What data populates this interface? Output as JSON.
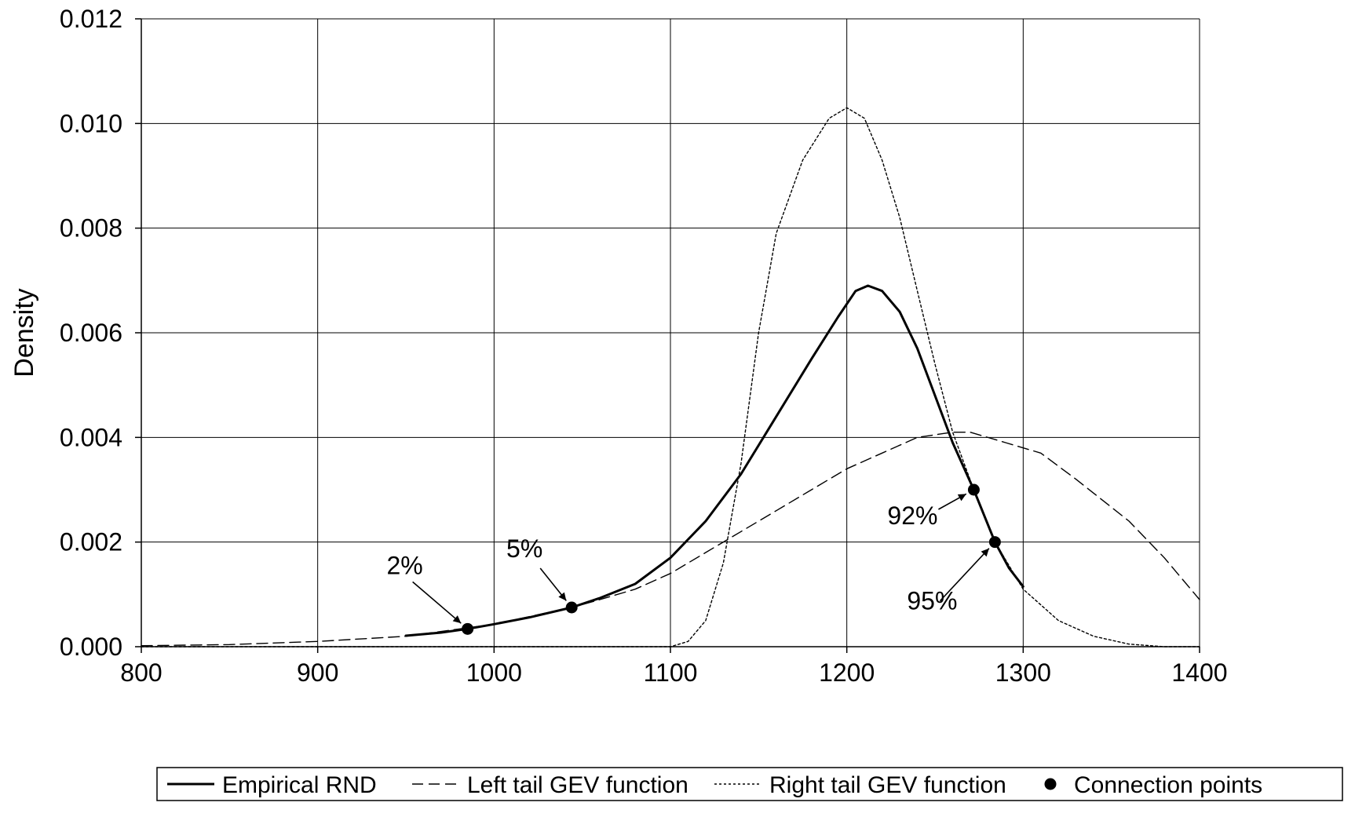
{
  "chart_data": {
    "type": "line",
    "title": "",
    "xlabel": "",
    "ylabel": "Density",
    "xlim": [
      800,
      1400
    ],
    "ylim": [
      0,
      0.012
    ],
    "x_ticks": [
      "800",
      "900",
      "1000",
      "1100",
      "1200",
      "1300",
      "1400"
    ],
    "y_ticks": [
      "0.000",
      "0.002",
      "0.004",
      "0.006",
      "0.008",
      "0.010",
      "0.012"
    ],
    "grid": true,
    "legend_position": "bottom",
    "series": [
      {
        "name": "Empirical RND",
        "style": "solid",
        "color": "#000000",
        "points": [
          [
            950,
            0.00021
          ],
          [
            970,
            0.00027
          ],
          [
            985,
            0.00034
          ],
          [
            1000,
            0.00043
          ],
          [
            1020,
            0.00056
          ],
          [
            1044,
            0.00075
          ],
          [
            1060,
            0.00093
          ],
          [
            1080,
            0.0012
          ],
          [
            1100,
            0.0017
          ],
          [
            1120,
            0.0024
          ],
          [
            1140,
            0.0033
          ],
          [
            1160,
            0.0044
          ],
          [
            1180,
            0.0055
          ],
          [
            1195,
            0.0063
          ],
          [
            1205,
            0.0068
          ],
          [
            1212,
            0.0069
          ],
          [
            1220,
            0.0068
          ],
          [
            1230,
            0.0064
          ],
          [
            1240,
            0.0057
          ],
          [
            1250,
            0.0048
          ],
          [
            1260,
            0.0039
          ],
          [
            1272,
            0.003
          ],
          [
            1284,
            0.002
          ],
          [
            1292,
            0.0015
          ],
          [
            1300,
            0.00115
          ]
        ]
      },
      {
        "name": "Left tail GEV function",
        "style": "dashed",
        "color": "#000000",
        "points": [
          [
            800,
            2e-05
          ],
          [
            850,
            4e-05
          ],
          [
            900,
            0.0001
          ],
          [
            950,
            0.0002
          ],
          [
            1000,
            0.00043
          ],
          [
            1044,
            0.00075
          ],
          [
            1060,
            0.0009
          ],
          [
            1080,
            0.0011
          ],
          [
            1100,
            0.0014
          ],
          [
            1120,
            0.0018
          ],
          [
            1140,
            0.0022
          ],
          [
            1160,
            0.0026
          ],
          [
            1180,
            0.003
          ],
          [
            1200,
            0.0034
          ],
          [
            1220,
            0.0037
          ],
          [
            1240,
            0.004
          ],
          [
            1260,
            0.0041
          ],
          [
            1270,
            0.0041
          ],
          [
            1290,
            0.0039
          ],
          [
            1310,
            0.0037
          ],
          [
            1330,
            0.0032
          ],
          [
            1360,
            0.0024
          ],
          [
            1380,
            0.0017
          ],
          [
            1400,
            0.0009
          ]
        ]
      },
      {
        "name": "Right tail GEV function",
        "style": "dotted",
        "color": "#000000",
        "points": [
          [
            800,
            0.0
          ],
          [
            1100,
            0.0
          ],
          [
            1110,
            0.0001
          ],
          [
            1120,
            0.0005
          ],
          [
            1130,
            0.0016
          ],
          [
            1140,
            0.0035
          ],
          [
            1150,
            0.006
          ],
          [
            1160,
            0.0079
          ],
          [
            1175,
            0.0093
          ],
          [
            1190,
            0.0101
          ],
          [
            1200,
            0.0103
          ],
          [
            1210,
            0.0101
          ],
          [
            1220,
            0.0093
          ],
          [
            1230,
            0.0082
          ],
          [
            1240,
            0.0068
          ],
          [
            1250,
            0.0054
          ],
          [
            1260,
            0.0041
          ],
          [
            1272,
            0.003
          ],
          [
            1284,
            0.002
          ],
          [
            1300,
            0.0011
          ],
          [
            1320,
            0.0005
          ],
          [
            1340,
            0.0002
          ],
          [
            1360,
            5e-05
          ],
          [
            1380,
            0.0
          ],
          [
            1400,
            0.0
          ]
        ]
      }
    ],
    "connection_points": {
      "name": "Connection points",
      "points": [
        {
          "x": 985,
          "y": 0.00034,
          "label": "2%"
        },
        {
          "x": 1044,
          "y": 0.00075,
          "label": "5%"
        },
        {
          "x": 1272,
          "y": 0.003,
          "label": "92%"
        },
        {
          "x": 1284,
          "y": 0.002,
          "label": "95%"
        }
      ]
    }
  }
}
